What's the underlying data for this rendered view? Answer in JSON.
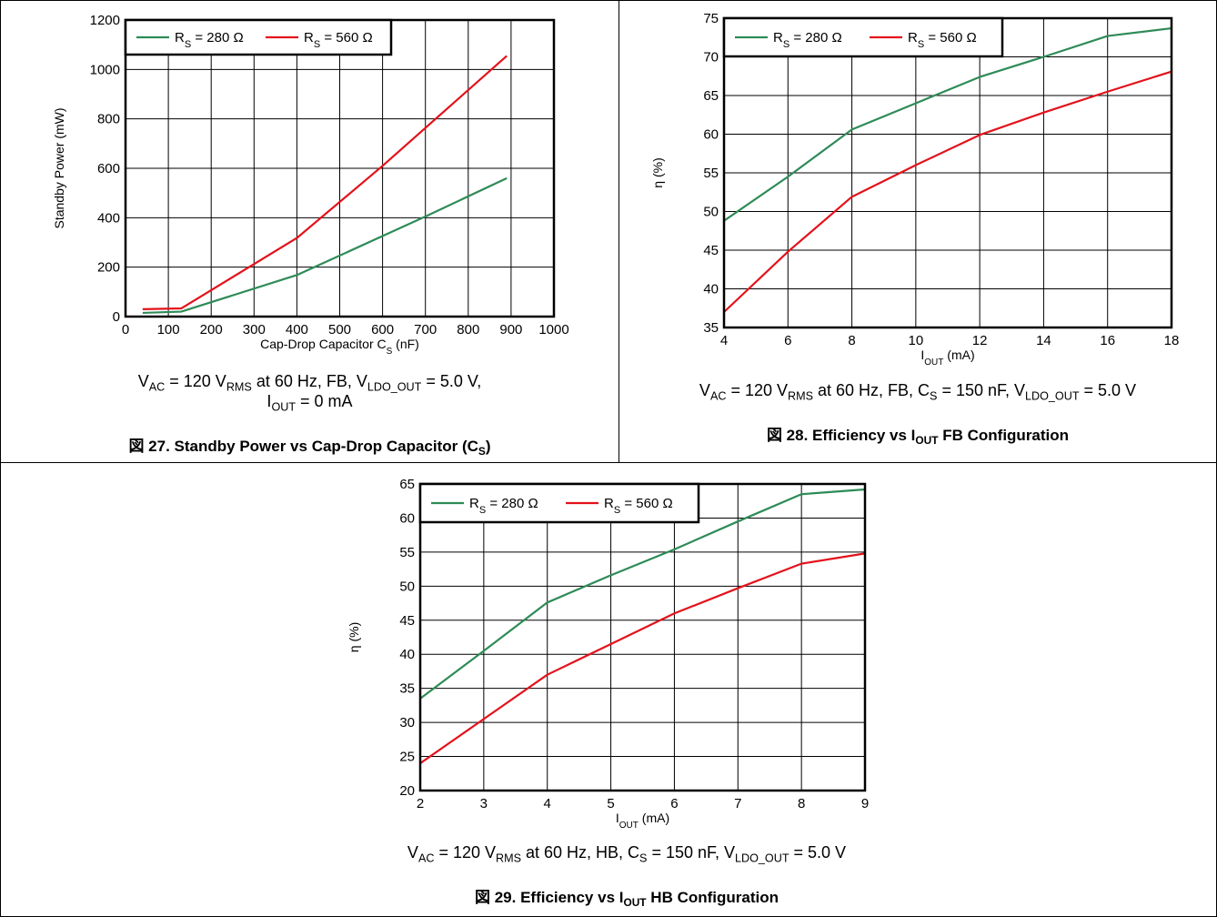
{
  "figures": [
    {
      "caption_parts": [
        [
          "V",
          "AC"
        ],
        [
          " = 120 V",
          ""
        ],
        [
          "",
          "RMS"
        ],
        [
          " at 60 Hz, FB, V",
          ""
        ],
        [
          "",
          "LDO_OUT"
        ],
        [
          " = 5.0 V,",
          ""
        ]
      ],
      "caption_line2_parts": [
        [
          "I",
          "OUT"
        ],
        [
          " = 0 mA",
          ""
        ]
      ],
      "title_parts": [
        [
          "図 27. Standby Power vs Cap-Drop Capacitor (C",
          ""
        ],
        [
          "",
          "S"
        ],
        [
          ")",
          ""
        ]
      ]
    },
    {
      "caption_parts": [
        [
          "V",
          "AC"
        ],
        [
          " = 120 V",
          ""
        ],
        [
          "",
          "RMS"
        ],
        [
          " at 60 Hz, FB, C",
          ""
        ],
        [
          "",
          "S"
        ],
        [
          " = 150 nF, V",
          ""
        ],
        [
          "",
          "LDO_OUT"
        ],
        [
          " = 5.0 V",
          ""
        ]
      ],
      "title_parts": [
        [
          "図 28. Efficiency vs I",
          ""
        ],
        [
          "",
          "OUT"
        ],
        [
          " FB Configuration",
          ""
        ]
      ]
    },
    {
      "caption_parts": [
        [
          "V",
          "AC"
        ],
        [
          " = 120 V",
          ""
        ],
        [
          "",
          "RMS"
        ],
        [
          " at 60 Hz, HB, C",
          ""
        ],
        [
          "",
          "S"
        ],
        [
          " = 150 nF, V",
          ""
        ],
        [
          "",
          "LDO_OUT"
        ],
        [
          " = 5.0 V",
          ""
        ]
      ],
      "title_parts": [
        [
          "図 29. Efficiency vs I",
          ""
        ],
        [
          "",
          "OUT"
        ],
        [
          " HB Configuration",
          ""
        ]
      ]
    }
  ],
  "chart_data": [
    {
      "type": "line",
      "xlabel_parts": [
        [
          "Cap-Drop Capacitor C",
          ""
        ],
        [
          "",
          "S"
        ],
        [
          " (nF)",
          ""
        ]
      ],
      "ylabel": "Standby Power (mW)",
      "xlim": [
        0,
        1000
      ],
      "ylim": [
        0,
        1200
      ],
      "xticks": [
        0,
        100,
        200,
        300,
        400,
        500,
        600,
        700,
        800,
        900,
        1000
      ],
      "yticks": [
        0,
        200,
        400,
        600,
        800,
        1000,
        1200
      ],
      "grid": true,
      "legend_position": "top-left",
      "series": [
        {
          "name_parts": [
            [
              "R",
              ""
            ],
            [
              "",
              "S"
            ],
            [
              " = 280 Ω",
              ""
            ]
          ],
          "color": "#2e8b57",
          "x": [
            40,
            130,
            400,
            700,
            890
          ],
          "y": [
            15,
            20,
            168,
            405,
            560
          ]
        },
        {
          "name_parts": [
            [
              "R",
              ""
            ],
            [
              "",
              "S"
            ],
            [
              " = 560 Ω",
              ""
            ]
          ],
          "color": "#e3121b",
          "x": [
            40,
            130,
            400,
            600,
            890
          ],
          "y": [
            30,
            33,
            318,
            610,
            1055
          ]
        }
      ]
    },
    {
      "type": "line",
      "xlabel_parts": [
        [
          "I",
          ""
        ],
        [
          "",
          "OUT"
        ],
        [
          " (mA)",
          ""
        ]
      ],
      "ylabel": "η (%)",
      "xlim": [
        4,
        18
      ],
      "ylim": [
        35,
        75
      ],
      "xticks": [
        4,
        6,
        8,
        10,
        12,
        14,
        16,
        18
      ],
      "yticks": [
        35,
        40,
        45,
        50,
        55,
        60,
        65,
        70,
        75
      ],
      "grid": true,
      "legend_position": "top-left",
      "series": [
        {
          "name_parts": [
            [
              "R",
              ""
            ],
            [
              "",
              "S"
            ],
            [
              " = 280 Ω",
              ""
            ]
          ],
          "color": "#2e8b57",
          "x": [
            4,
            6,
            8,
            10,
            12,
            14,
            16,
            18
          ],
          "y": [
            48.8,
            54.5,
            60.6,
            64.0,
            67.4,
            70.0,
            72.7,
            73.7
          ]
        },
        {
          "name_parts": [
            [
              "R",
              ""
            ],
            [
              "",
              "S"
            ],
            [
              " = 560 Ω",
              ""
            ]
          ],
          "color": "#e3121b",
          "x": [
            4,
            6,
            8,
            10,
            12,
            14,
            16,
            18
          ],
          "y": [
            37.0,
            44.8,
            51.9,
            56.0,
            59.9,
            62.8,
            65.5,
            68.1
          ]
        }
      ]
    },
    {
      "type": "line",
      "xlabel_parts": [
        [
          "I",
          ""
        ],
        [
          "",
          "OUT"
        ],
        [
          " (mA)",
          ""
        ]
      ],
      "ylabel": "η (%)",
      "xlim": [
        2,
        9
      ],
      "ylim": [
        20,
        65
      ],
      "xticks": [
        2,
        3,
        4,
        5,
        6,
        7,
        8,
        9
      ],
      "yticks": [
        20,
        25,
        30,
        35,
        40,
        45,
        50,
        55,
        60,
        65
      ],
      "grid": true,
      "legend_position": "top-left",
      "series": [
        {
          "name_parts": [
            [
              "R",
              ""
            ],
            [
              "",
              "S"
            ],
            [
              " = 280 Ω",
              ""
            ]
          ],
          "color": "#2e8b57",
          "x": [
            2,
            3,
            4,
            5,
            6,
            7,
            8,
            9
          ],
          "y": [
            33.5,
            40.5,
            47.6,
            51.6,
            55.4,
            59.5,
            63.5,
            64.2
          ]
        },
        {
          "name_parts": [
            [
              "R",
              ""
            ],
            [
              "",
              "S"
            ],
            [
              " = 560 Ω",
              ""
            ]
          ],
          "color": "#e3121b",
          "x": [
            2,
            3,
            4,
            5,
            6,
            7,
            8,
            9
          ],
          "y": [
            24.0,
            30.5,
            37.0,
            41.5,
            46.0,
            49.7,
            53.3,
            54.8
          ]
        }
      ]
    }
  ]
}
